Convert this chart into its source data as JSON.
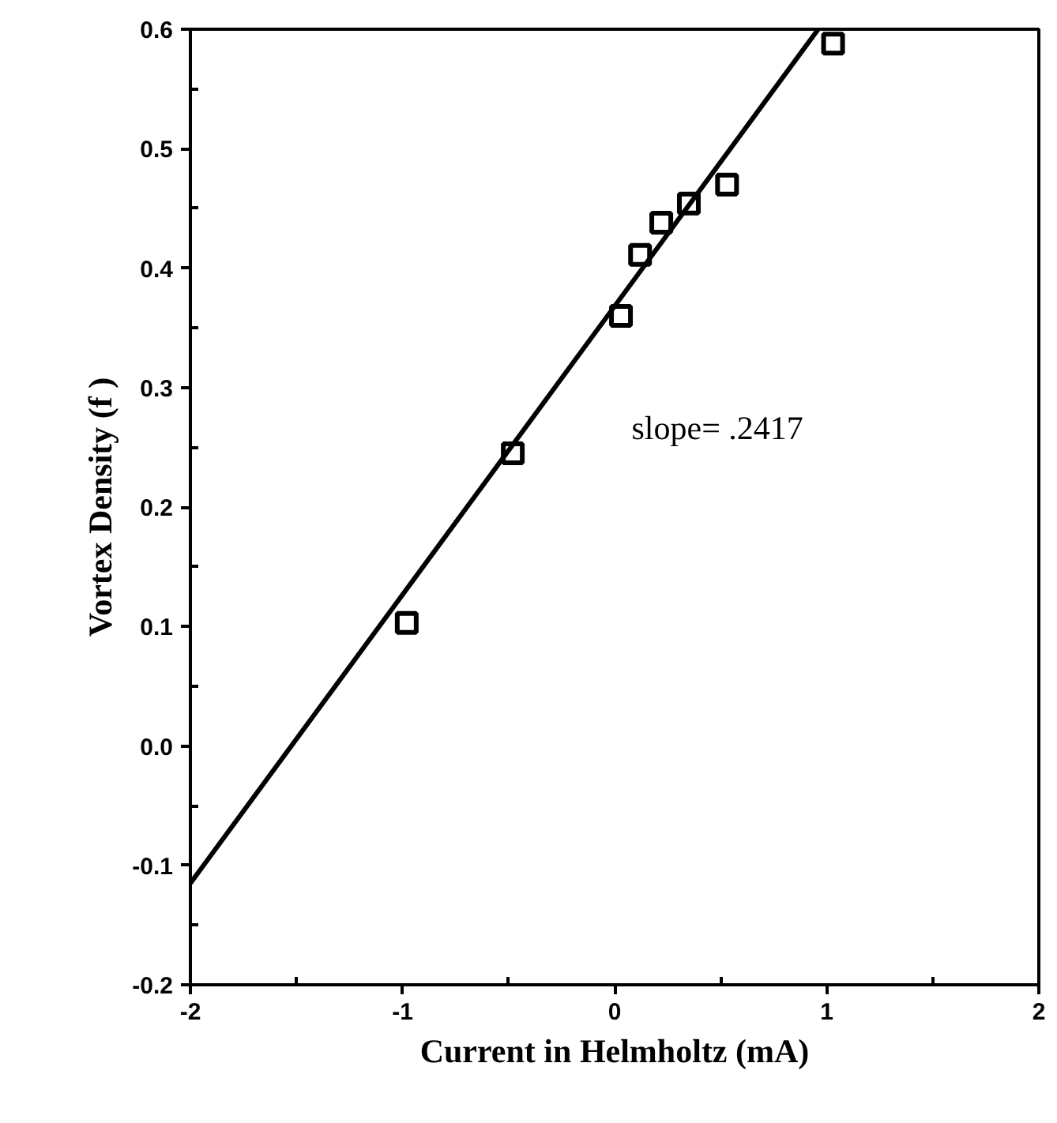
{
  "chart_data": {
    "type": "scatter",
    "xlabel": "Current in Helmholtz (mA)",
    "ylabel": "Vortex Density (f )",
    "series": [
      {
        "color": "#000000",
        "marker": "square",
        "x": [
          -0.98,
          -0.48,
          0.03,
          0.12,
          0.22,
          0.35,
          0.53,
          1.03
        ],
        "values": [
          0.103,
          0.245,
          0.36,
          0.411,
          0.438,
          0.454,
          0.47,
          0.588
        ]
      },
      {
        "type": "line",
        "color": "#000000",
        "marker": "none",
        "line_style": "solid",
        "x": [
          -2,
          0.96
        ],
        "values": [
          -0.115,
          0.6
        ]
      }
    ],
    "annotations": [
      "slope= .2417"
    ],
    "xlim": [
      -2,
      2
    ],
    "ylim": [
      -0.2,
      0.6
    ],
    "xticks": [
      -2,
      -1,
      0,
      1,
      2
    ],
    "yticks": [
      {
        "value": -0.2,
        "label": "-0.2"
      },
      {
        "value": -0.1,
        "label": "-0.1"
      },
      {
        "value": 0,
        "label": "0.0"
      },
      {
        "value": 0.1,
        "label": "0.1"
      },
      {
        "value": 0.2,
        "label": "0.2"
      },
      {
        "value": 0.3,
        "label": "0.3"
      },
      {
        "value": 0.4,
        "label": "0.4"
      },
      {
        "value": 0.5,
        "label": "0.5"
      },
      {
        "value": 0.6,
        "label": "0.6"
      }
    ],
    "grid": false
  }
}
